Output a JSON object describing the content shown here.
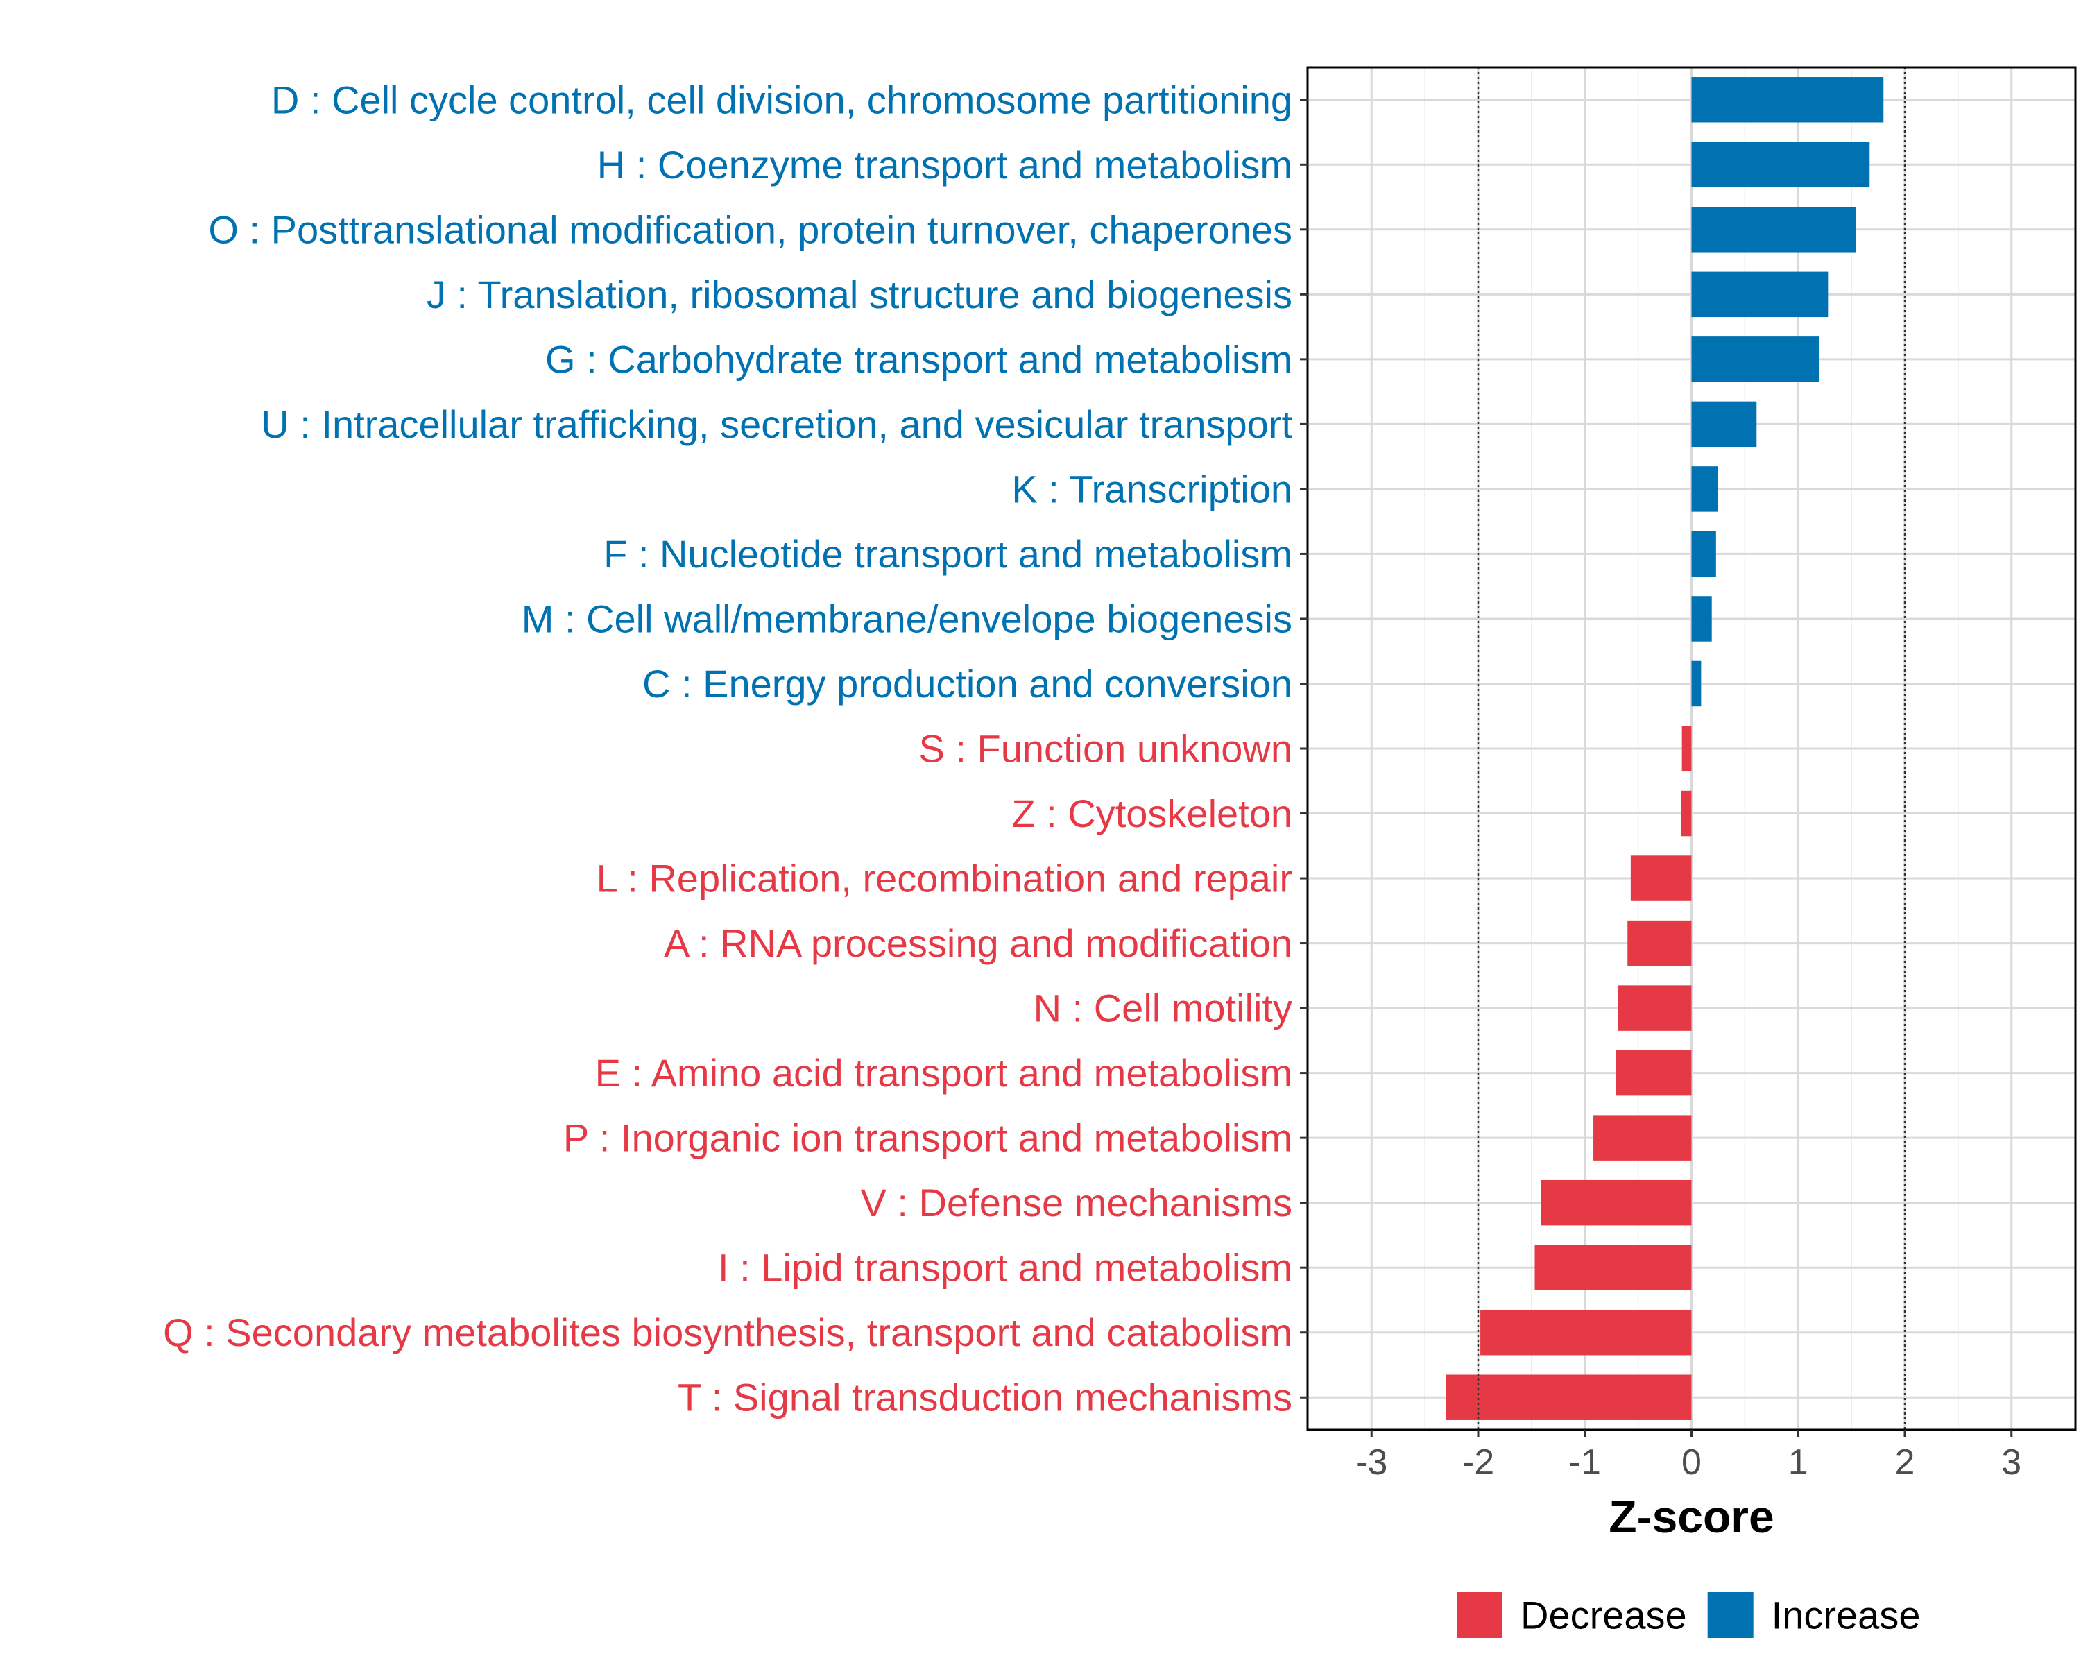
{
  "chart_data": {
    "type": "bar",
    "orientation": "horizontal",
    "title": "",
    "xlabel": "Z-score",
    "ylabel": "",
    "xlim": [
      -3.6,
      3.6
    ],
    "xticks": [
      -3,
      -2,
      -1,
      0,
      1,
      2,
      3
    ],
    "xtick_labels": [
      "-3",
      "-2",
      "-1",
      "0",
      "1",
      "2",
      "3"
    ],
    "reference_lines": [
      -2,
      2
    ],
    "grid": true,
    "legend_position": "bottom",
    "colors": {
      "Increase": "#0072B2",
      "Decrease": "#E63946"
    },
    "legend": [
      {
        "label": "Decrease",
        "color": "#E63946"
      },
      {
        "label": "Increase",
        "color": "#0072B2"
      }
    ],
    "categories": [
      "D : Cell cycle control, cell division, chromosome partitioning",
      "H : Coenzyme transport and metabolism",
      "O : Posttranslational modification, protein turnover, chaperones",
      "J : Translation, ribosomal structure and biogenesis",
      "G : Carbohydrate transport and metabolism",
      "U : Intracellular trafficking, secretion, and vesicular transport",
      "K : Transcription",
      "F : Nucleotide transport and metabolism",
      "M : Cell wall/membrane/envelope biogenesis",
      "C : Energy production and conversion",
      "S : Function unknown",
      "Z : Cytoskeleton",
      "L : Replication, recombination and repair",
      "A : RNA processing and modification",
      "N : Cell motility",
      "E : Amino acid transport and metabolism",
      "P : Inorganic ion transport and metabolism",
      "V : Defense mechanisms",
      "I : Lipid transport and metabolism",
      "Q : Secondary metabolites biosynthesis, transport and catabolism",
      "T : Signal transduction mechanisms"
    ],
    "values": [
      1.8,
      1.67,
      1.54,
      1.28,
      1.2,
      0.61,
      0.25,
      0.23,
      0.19,
      0.09,
      -0.09,
      -0.1,
      -0.57,
      -0.6,
      -0.69,
      -0.71,
      -0.92,
      -1.41,
      -1.47,
      -1.98,
      -2.3
    ],
    "groups": [
      "Increase",
      "Increase",
      "Increase",
      "Increase",
      "Increase",
      "Increase",
      "Increase",
      "Increase",
      "Increase",
      "Increase",
      "Decrease",
      "Decrease",
      "Decrease",
      "Decrease",
      "Decrease",
      "Decrease",
      "Decrease",
      "Decrease",
      "Decrease",
      "Decrease",
      "Decrease"
    ]
  }
}
